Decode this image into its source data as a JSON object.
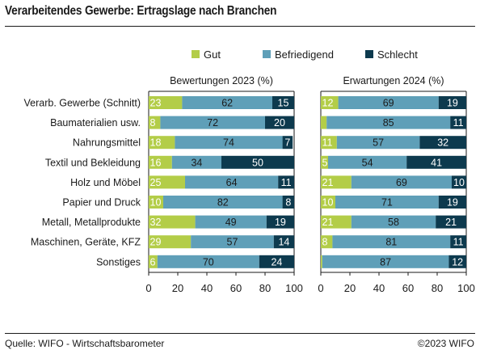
{
  "title": "Verarbeitendes Gewerbe: Ertragslage nach Branchen",
  "source": "Quelle: WIFO - Wirtschaftsbarometer",
  "copyright": "©2023 WIFO",
  "colors": {
    "Gut": "#b3cd48",
    "Befriedigend": "#5f9fb8",
    "Schlecht": "#0d3a4e",
    "label_dark": "#1a1a1a",
    "label_light": "#ffffff"
  },
  "chart_data": [
    {
      "type": "bar",
      "orientation": "horizontal",
      "stacked": true,
      "title": "Bewertungen 2023 (%)",
      "categories": [
        "Verarb. Gewerbe (Schnitt)",
        "Baumaterialien usw.",
        "Nahrungsmittel",
        "Textil und Bekleidung",
        "Holz und Möbel",
        "Papier und Druck",
        "Metall, Metallprodukte",
        "Maschinen, Geräte, KFZ",
        "Sonstiges"
      ],
      "series": [
        {
          "name": "Gut",
          "values": [
            23,
            8,
            18,
            16,
            25,
            10,
            32,
            29,
            6
          ]
        },
        {
          "name": "Befriedigend",
          "values": [
            62,
            72,
            74,
            34,
            64,
            82,
            49,
            57,
            70
          ]
        },
        {
          "name": "Schlecht",
          "values": [
            15,
            20,
            7,
            50,
            11,
            8,
            19,
            14,
            24
          ]
        }
      ],
      "xlim": [
        0,
        100
      ],
      "xticks": [
        "0",
        "20",
        "40",
        "60",
        "80",
        "100"
      ],
      "legend": "top",
      "grid": false
    },
    {
      "type": "bar",
      "orientation": "horizontal",
      "stacked": true,
      "title": "Erwartungen 2024 (%)",
      "categories": [
        "Verarb. Gewerbe (Schnitt)",
        "Baumaterialien usw.",
        "Nahrungsmittel",
        "Textil und Bekleidung",
        "Holz und Möbel",
        "Papier und Druck",
        "Metall, Metallprodukte",
        "Maschinen, Geräte, KFZ",
        "Sonstiges"
      ],
      "series": [
        {
          "name": "Gut",
          "values": [
            12,
            4,
            11,
            5,
            21,
            10,
            21,
            8,
            1
          ],
          "labels": [
            "12",
            "",
            "11",
            "5",
            "21",
            "10",
            "21",
            "8",
            ""
          ]
        },
        {
          "name": "Befriedigend",
          "values": [
            69,
            85,
            57,
            54,
            69,
            71,
            58,
            81,
            87
          ]
        },
        {
          "name": "Schlecht",
          "values": [
            19,
            11,
            32,
            41,
            10,
            19,
            21,
            11,
            12
          ]
        }
      ],
      "xlim": [
        0,
        100
      ],
      "xticks": [
        "0",
        "20",
        "40",
        "60",
        "80",
        "100"
      ],
      "legend": "top",
      "grid": false
    }
  ]
}
